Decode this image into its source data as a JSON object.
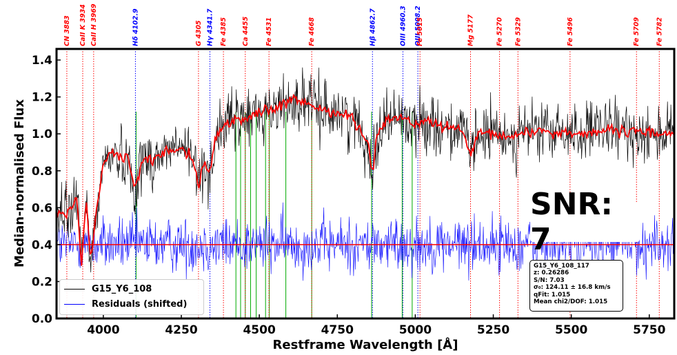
{
  "chart_data": {
    "type": "line",
    "xlabel": "Restframe Wavelength [Å]",
    "ylabel": "Median-normalised Flux",
    "xlim": [
      3850,
      5830
    ],
    "ylim": [
      0.0,
      1.46
    ],
    "xticks": [
      "4000",
      "4250",
      "4500",
      "4750",
      "5000",
      "5250",
      "5500",
      "5750"
    ],
    "xtick_values": [
      4000,
      4250,
      4500,
      4750,
      5000,
      5250,
      5500,
      5750
    ],
    "yticks": [
      "0.0",
      "0.2",
      "0.4",
      "0.6",
      "0.8",
      "1.0",
      "1.2",
      "1.4"
    ],
    "ytick_values": [
      0.0,
      0.2,
      0.4,
      0.6,
      0.8,
      1.0,
      1.2,
      1.4
    ],
    "grid": false,
    "residual_offset": 0.4,
    "series": [
      {
        "name": "G15_Y6_108",
        "color": "#000000",
        "kind": "observed spectrum (noisy)"
      },
      {
        "name": "Residuals (shifted)",
        "color": "#0000ff",
        "kind": "residuals around 0.4"
      },
      {
        "name": "",
        "color": "#ff0000",
        "kind": "best-fit model"
      }
    ],
    "model_points": {
      "x": [
        3850,
        3880,
        3900,
        3915,
        3930,
        3945,
        3960,
        3975,
        3990,
        4000,
        4020,
        4050,
        4080,
        4100,
        4130,
        4160,
        4200,
        4250,
        4290,
        4305,
        4320,
        4340,
        4360,
        4380,
        4400,
        4450,
        4500,
        4550,
        4600,
        4650,
        4700,
        4750,
        4800,
        4850,
        4862,
        4875,
        4900,
        4950,
        5000,
        5050,
        5100,
        5150,
        5177,
        5200,
        5250,
        5300,
        5350,
        5400,
        5450,
        5500,
        5550,
        5600,
        5650,
        5700,
        5750,
        5800,
        5830
      ],
      "y": [
        0.58,
        0.55,
        0.6,
        0.66,
        0.3,
        0.65,
        0.28,
        0.55,
        0.72,
        0.83,
        0.9,
        0.88,
        0.86,
        0.7,
        0.88,
        0.85,
        0.91,
        0.93,
        0.86,
        0.72,
        0.85,
        0.78,
        0.97,
        1.04,
        1.06,
        1.08,
        1.12,
        1.13,
        1.18,
        1.17,
        1.13,
        1.12,
        1.08,
        0.95,
        0.78,
        0.97,
        1.08,
        1.09,
        1.05,
        1.07,
        1.03,
        1.02,
        0.88,
        0.99,
        1.0,
        0.98,
        1.01,
        1.02,
        1.0,
        1.01,
        1.0,
        1.02,
        1.01,
        1.01,
        1.01,
        1.0,
        1.01
      ]
    },
    "emission_masks": [
      {
        "x": 4105,
        "color": "#00aa00"
      },
      {
        "x": 4425,
        "color": "#00aa00"
      },
      {
        "x": 4440,
        "color": "#00aa00"
      },
      {
        "x": 4455,
        "color": "#00aa00"
      },
      {
        "x": 4472,
        "color": "#00aa00"
      },
      {
        "x": 4490,
        "color": "#00aa00"
      },
      {
        "x": 4520,
        "color": "#00aa00"
      },
      {
        "x": 4532,
        "color": "#00aa00"
      },
      {
        "x": 4585,
        "color": "#00aa00"
      },
      {
        "x": 4668,
        "color": "#00aa00"
      },
      {
        "x": 4860,
        "color": "#00aa00"
      },
      {
        "x": 4958,
        "color": "#00aa00"
      },
      {
        "x": 4990,
        "color": "#00aa00"
      }
    ],
    "spectral_lines": [
      {
        "label": "CN 3883",
        "x": 3883,
        "color": "#ff0000"
      },
      {
        "label": "CaII K 3934",
        "x": 3934,
        "color": "#ff0000"
      },
      {
        "label": "CaII H 3969",
        "x": 3969,
        "color": "#ff0000"
      },
      {
        "label": "Hδ 4102.9",
        "x": 4102.9,
        "color": "#0000ff"
      },
      {
        "label": "G 4305",
        "x": 4305,
        "color": "#ff0000"
      },
      {
        "label": "Hγ 4341.7",
        "x": 4341.7,
        "color": "#0000ff"
      },
      {
        "label": "Fe 4385",
        "x": 4385,
        "color": "#ff0000"
      },
      {
        "label": "Ca 4455",
        "x": 4455,
        "color": "#ff0000"
      },
      {
        "label": "Fe 4531",
        "x": 4531,
        "color": "#ff0000"
      },
      {
        "label": "Fe 4668",
        "x": 4668,
        "color": "#ff0000"
      },
      {
        "label": "Hβ 4862.7",
        "x": 4862.7,
        "color": "#0000ff"
      },
      {
        "label": "OIII 4960.3",
        "x": 4960.3,
        "color": "#0000ff"
      },
      {
        "label": "OIII 5008.2",
        "x": 5008.2,
        "color": "#0000ff"
      },
      {
        "label": "Fe 5015",
        "x": 5015,
        "color": "#ff0000"
      },
      {
        "label": "Mg 5177",
        "x": 5177,
        "color": "#ff0000"
      },
      {
        "label": "Fe 5270",
        "x": 5270,
        "color": "#ff0000"
      },
      {
        "label": "Fe 5329",
        "x": 5329,
        "color": "#ff0000"
      },
      {
        "label": "Fe 5496",
        "x": 5496,
        "color": "#ff0000"
      },
      {
        "label": "Fe 5709",
        "x": 5709,
        "color": "#ff0000"
      },
      {
        "label": "Fe 5782",
        "x": 5782,
        "color": "#ff0000"
      }
    ],
    "legend_position": "lower-left"
  },
  "annotations": {
    "snr": "SNR: 7",
    "info": [
      "G15_Y6_108_117",
      "z: 0.26286",
      "S/N: 7.03",
      "σ₀: 124.11 ± 16.8 km/s",
      "qFit: 1.015",
      "Mean chi2/DOF: 1.015"
    ]
  },
  "legend": {
    "items": [
      {
        "label": "G15_Y6_108",
        "color": "#000000"
      },
      {
        "label": "Residuals (shifted)",
        "color": "#0000ff"
      }
    ]
  }
}
